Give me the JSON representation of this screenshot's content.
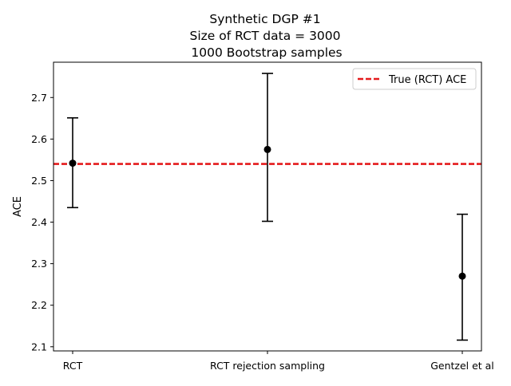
{
  "chart_data": {
    "type": "errorbar",
    "title_lines": [
      "Synthetic DGP #1",
      "Size of RCT data = 3000",
      "1000 Bootstrap samples"
    ],
    "xlabel": "",
    "ylabel": "ACE",
    "categories": [
      "RCT",
      "RCT rejection sampling",
      "Gentzel et al"
    ],
    "series": [
      {
        "values": [
          2.542,
          2.575,
          2.27
        ],
        "lower": [
          2.435,
          2.402,
          2.116
        ],
        "upper": [
          2.651,
          2.758,
          2.419
        ],
        "color": "#000000"
      }
    ],
    "reference_line": {
      "label": "True (RCT) ACE",
      "value": 2.54,
      "color": "#e41a1c",
      "style": "dashed"
    },
    "ylim": [
      2.09,
      2.785
    ],
    "yticks": [
      2.1,
      2.2,
      2.3,
      2.4,
      2.5,
      2.6,
      2.7
    ],
    "ytick_labels": [
      "2.1",
      "2.2",
      "2.3",
      "2.4",
      "2.5",
      "2.6",
      "2.7"
    ],
    "grid": false,
    "legend_position": "top-right"
  }
}
